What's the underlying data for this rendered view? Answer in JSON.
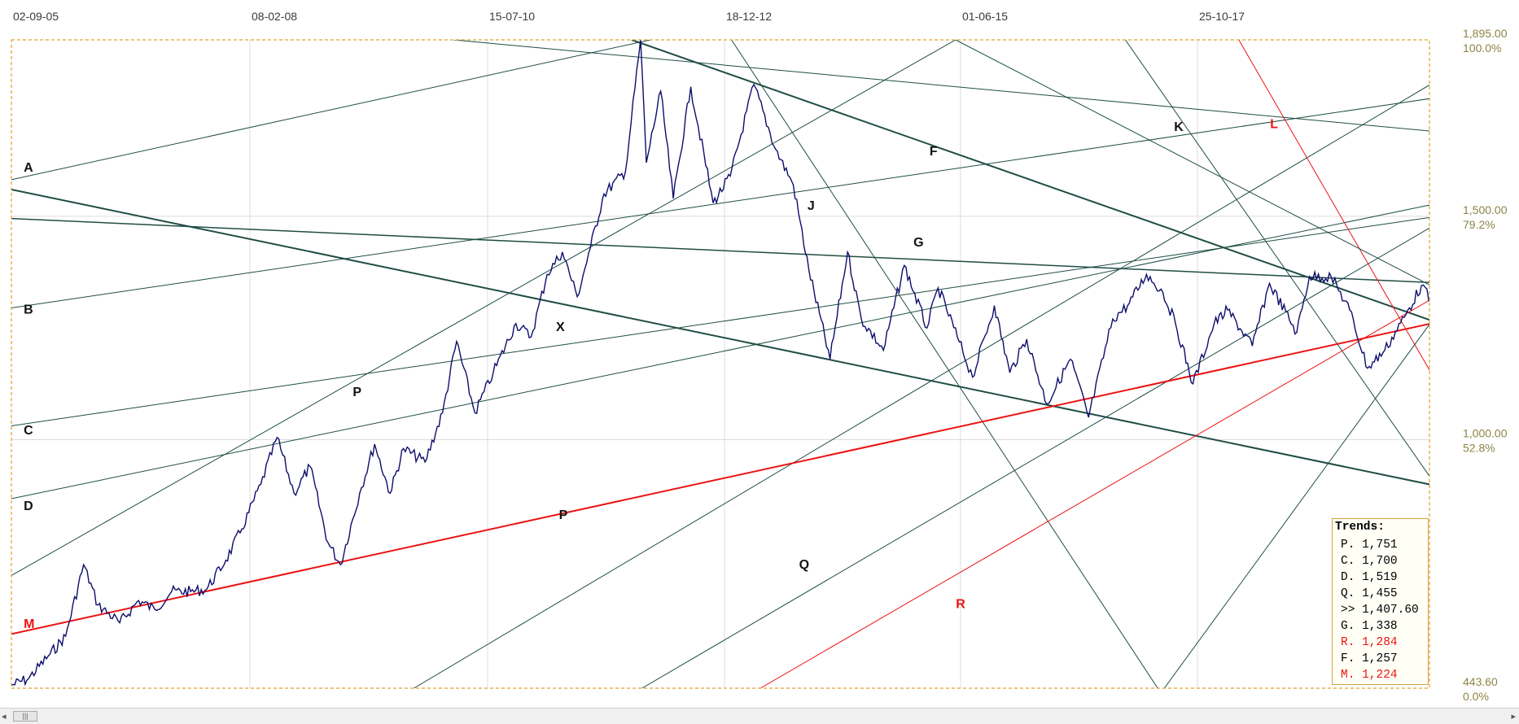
{
  "chart_data": {
    "type": "line",
    "title": "",
    "x_ticks": [
      "02-09-05",
      "08-02-08",
      "15-07-10",
      "18-12-12",
      "01-06-15",
      "25-10-17"
    ],
    "y_ticks": [
      "1,895.00",
      "100.0%",
      "1,500.00",
      "79.2%",
      "1,000.00",
      "52.8%",
      "443.60",
      "0.0%"
    ],
    "xlim": [
      "2005-09-02",
      "2019-03-20"
    ],
    "ylim": [
      443.6,
      1895
    ],
    "grid": true,
    "colors": {
      "price": "#0d0d6b",
      "trend": "#1f4d45",
      "support": "#ee1111",
      "frame": "#e0a030"
    },
    "series": [
      {
        "values": [
          [
            "2005-09-02",
            450
          ],
          [
            "2005-11-01",
            465
          ],
          [
            "2006-01-15",
            520
          ],
          [
            "2006-03-10",
            560
          ],
          [
            "2006-05-12",
            720
          ],
          [
            "2006-07-01",
            630
          ],
          [
            "2006-09-15",
            590
          ],
          [
            "2006-11-20",
            640
          ],
          [
            "2007-01-15",
            620
          ],
          [
            "2007-03-15",
            660
          ],
          [
            "2007-05-20",
            660
          ],
          [
            "2007-07-15",
            665
          ],
          [
            "2007-09-20",
            730
          ],
          [
            "2007-11-15",
            800
          ],
          [
            "2008-01-20",
            900
          ],
          [
            "2008-03-17",
            1005
          ],
          [
            "2008-05-15",
            880
          ],
          [
            "2008-07-10",
            940
          ],
          [
            "2008-09-10",
            770
          ],
          [
            "2008-10-24",
            720
          ],
          [
            "2008-12-30",
            880
          ],
          [
            "2009-02-20",
            990
          ],
          [
            "2009-04-15",
            880
          ],
          [
            "2009-06-01",
            980
          ],
          [
            "2009-08-15",
            950
          ],
          [
            "2009-10-15",
            1060
          ],
          [
            "2009-12-03",
            1220
          ],
          [
            "2010-02-05",
            1060
          ],
          [
            "2010-04-10",
            1150
          ],
          [
            "2010-06-28",
            1260
          ],
          [
            "2010-08-20",
            1230
          ],
          [
            "2010-10-15",
            1370
          ],
          [
            "2010-12-07",
            1420
          ],
          [
            "2011-01-28",
            1320
          ],
          [
            "2011-03-15",
            1430
          ],
          [
            "2011-05-01",
            1550
          ],
          [
            "2011-07-15",
            1600
          ],
          [
            "2011-09-06",
            1895
          ],
          [
            "2011-09-26",
            1620
          ],
          [
            "2011-11-15",
            1780
          ],
          [
            "2011-12-29",
            1540
          ],
          [
            "2012-02-28",
            1790
          ],
          [
            "2012-05-16",
            1530
          ],
          [
            "2012-07-15",
            1590
          ],
          [
            "2012-10-05",
            1795
          ],
          [
            "2012-12-20",
            1650
          ],
          [
            "2013-02-20",
            1570
          ],
          [
            "2013-04-15",
            1380
          ],
          [
            "2013-06-28",
            1180
          ],
          [
            "2013-08-28",
            1420
          ],
          [
            "2013-10-15",
            1270
          ],
          [
            "2013-12-31",
            1200
          ],
          [
            "2014-03-14",
            1390
          ],
          [
            "2014-06-01",
            1250
          ],
          [
            "2014-07-10",
            1340
          ],
          [
            "2014-09-15",
            1230
          ],
          [
            "2014-11-07",
            1140
          ],
          [
            "2015-01-22",
            1300
          ],
          [
            "2015-03-17",
            1150
          ],
          [
            "2015-05-15",
            1225
          ],
          [
            "2015-07-24",
            1080
          ],
          [
            "2015-10-15",
            1180
          ],
          [
            "2015-12-17",
            1050
          ],
          [
            "2016-03-10",
            1270
          ],
          [
            "2016-05-01",
            1300
          ],
          [
            "2016-07-06",
            1370
          ],
          [
            "2016-09-01",
            1330
          ],
          [
            "2016-10-15",
            1260
          ],
          [
            "2016-12-15",
            1125
          ],
          [
            "2017-02-27",
            1260
          ],
          [
            "2017-04-15",
            1290
          ],
          [
            "2017-07-10",
            1210
          ],
          [
            "2017-09-08",
            1350
          ],
          [
            "2017-12-12",
            1240
          ],
          [
            "2018-01-25",
            1365
          ],
          [
            "2018-04-11",
            1365
          ],
          [
            "2018-06-15",
            1290
          ],
          [
            "2018-08-16",
            1160
          ],
          [
            "2018-10-15",
            1200
          ],
          [
            "2018-12-28",
            1280
          ],
          [
            "2019-02-20",
            1345
          ],
          [
            "2019-05-02",
            1270
          ],
          [
            "2019-06-15",
            1380
          ],
          [
            "2019-07-05",
            1420
          ],
          [
            "2019-07-18",
            1407.6
          ]
        ]
      }
    ],
    "trendlines": [
      {
        "label": "A",
        "color": "trend",
        "width": 1,
        "points": [
          [
            "2005-09-02",
            1582
          ],
          [
            "2011-10-10",
            1895
          ]
        ]
      },
      {
        "label": "B",
        "color": "trend",
        "width": 1,
        "points": [
          [
            "2005-09-02",
            1295
          ],
          [
            "2019-08-01",
            1776
          ]
        ]
      },
      {
        "label": "C",
        "color": "trend",
        "width": 1,
        "points": [
          [
            "2005-09-02",
            1031
          ],
          [
            "2019-08-01",
            1510
          ]
        ]
      },
      {
        "label": "D",
        "color": "trend",
        "width": 1,
        "points": [
          [
            "2005-09-02",
            868
          ],
          [
            "2019-08-01",
            1543
          ]
        ]
      },
      {
        "label": "P",
        "color": "trend",
        "width": 1,
        "points": [
          [
            "2005-09-02",
            696
          ],
          [
            "2014-09-09",
            1895
          ]
        ]
      },
      {
        "label": "P",
        "color": "trend",
        "width": 1,
        "points": [
          [
            "2009-07-07",
            443.6
          ],
          [
            "2019-08-01",
            1845
          ]
        ]
      },
      {
        "label": "Q",
        "color": "trend",
        "width": 1,
        "points": [
          [
            "2011-09-11",
            443.6
          ],
          [
            "2019-08-01",
            1524
          ]
        ]
      },
      {
        "label": "X",
        "color": "trend",
        "width": 2,
        "points": [
          [
            "2005-09-02",
            1560
          ],
          [
            "2019-08-01",
            882
          ]
        ]
      },
      {
        "label": "F",
        "color": "trend",
        "width": 2,
        "points": [
          [
            "2011-08-06",
            1895
          ],
          [
            "2019-08-01",
            1238
          ]
        ]
      },
      {
        "label": "G",
        "color": "trend",
        "width": 1.5,
        "points": [
          [
            "2005-09-02",
            1495
          ],
          [
            "2019-08-01",
            1348
          ]
        ]
      },
      {
        "label": "J",
        "color": "trend",
        "width": 1,
        "points": [
          [
            "2012-07-19",
            1895
          ],
          [
            "2016-08-14",
            443.6
          ]
        ]
      },
      {
        "label": "K",
        "color": "trend",
        "width": 1,
        "points": [
          [
            "2016-04-23",
            1895
          ],
          [
            "2019-08-01",
            795
          ]
        ]
      },
      {
        "label": "L",
        "color": "support",
        "width": 1,
        "points": [
          [
            "2017-05-24",
            1895
          ],
          [
            "2019-08-01",
            1007
          ]
        ]
      },
      {
        "label": "M",
        "color": "support",
        "width": 2,
        "points": [
          [
            "2005-09-02",
            565
          ],
          [
            "2019-08-01",
            1278
          ]
        ]
      },
      {
        "label": "R",
        "color": "support",
        "width": 1,
        "points": [
          [
            "2012-10-28",
            443.6
          ],
          [
            "2019-08-01",
            1362
          ]
        ]
      },
      {
        "label": "",
        "color": "trend",
        "width": 1,
        "points": [
          [
            "2009-11-24",
            1895
          ],
          [
            "2019-08-01",
            1683
          ]
        ]
      },
      {
        "label": "",
        "color": "trend",
        "width": 1,
        "points": [
          [
            "2014-09-09",
            1895
          ],
          [
            "2019-08-01",
            1302
          ]
        ]
      },
      {
        "label": "",
        "color": "trend",
        "width": 1,
        "points": [
          [
            "2016-09-06",
            443.6
          ],
          [
            "2019-08-01",
            1376
          ]
        ]
      }
    ],
    "line_labels": [
      {
        "text": "A",
        "color": "trend",
        "at": [
          "2005-10-15",
          1600
        ]
      },
      {
        "text": "B",
        "color": "trend",
        "at": [
          "2005-10-15",
          1282
        ]
      },
      {
        "text": "C",
        "color": "trend",
        "at": [
          "2005-10-15",
          1012
        ]
      },
      {
        "text": "D",
        "color": "trend",
        "at": [
          "2005-10-15",
          842
        ]
      },
      {
        "text": "M",
        "color": "support",
        "at": [
          "2005-10-15",
          578
        ]
      },
      {
        "text": "P",
        "color": "trend",
        "at": [
          "2008-12-06",
          1097
        ]
      },
      {
        "text": "X",
        "color": "trend",
        "at": [
          "2010-11-15",
          1243
        ]
      },
      {
        "text": "P",
        "color": "trend",
        "at": [
          "2010-11-25",
          822
        ]
      },
      {
        "text": "Q",
        "color": "trend",
        "at": [
          "2013-03-12",
          711
        ]
      },
      {
        "text": "J",
        "color": "trend",
        "at": [
          "2013-04-10",
          1514
        ]
      },
      {
        "text": "G",
        "color": "trend",
        "at": [
          "2014-04-15",
          1432
        ]
      },
      {
        "text": "F",
        "color": "trend",
        "at": [
          "2014-06-10",
          1636
        ]
      },
      {
        "text": "R",
        "color": "support",
        "at": [
          "2014-09-10",
          623
        ]
      },
      {
        "text": "K",
        "color": "trend",
        "at": [
          "2016-10-10",
          1691
        ]
      },
      {
        "text": "L",
        "color": "support",
        "at": [
          "2017-09-10",
          1697
        ]
      }
    ]
  },
  "legend": {
    "title": "Trends:",
    "rows": [
      {
        "text": "P. 1,751",
        "color": "#000000"
      },
      {
        "text": "C. 1,700",
        "color": "#000000"
      },
      {
        "text": "D. 1,519",
        "color": "#000000"
      },
      {
        "text": "Q. 1,455",
        "color": "#000000"
      },
      {
        "text": ">> 1,407.60",
        "color": "#000000"
      },
      {
        "text": "G. 1,338",
        "color": "#000000"
      },
      {
        "text": "R. 1,284",
        "color": "#ee1111"
      },
      {
        "text": "F. 1,257",
        "color": "#000000"
      },
      {
        "text": "M. 1,224",
        "color": "#ee1111"
      }
    ]
  },
  "scrollbar": {
    "left_arrow": "◂",
    "right_arrow": "▸",
    "thumb_grip": "|||"
  }
}
